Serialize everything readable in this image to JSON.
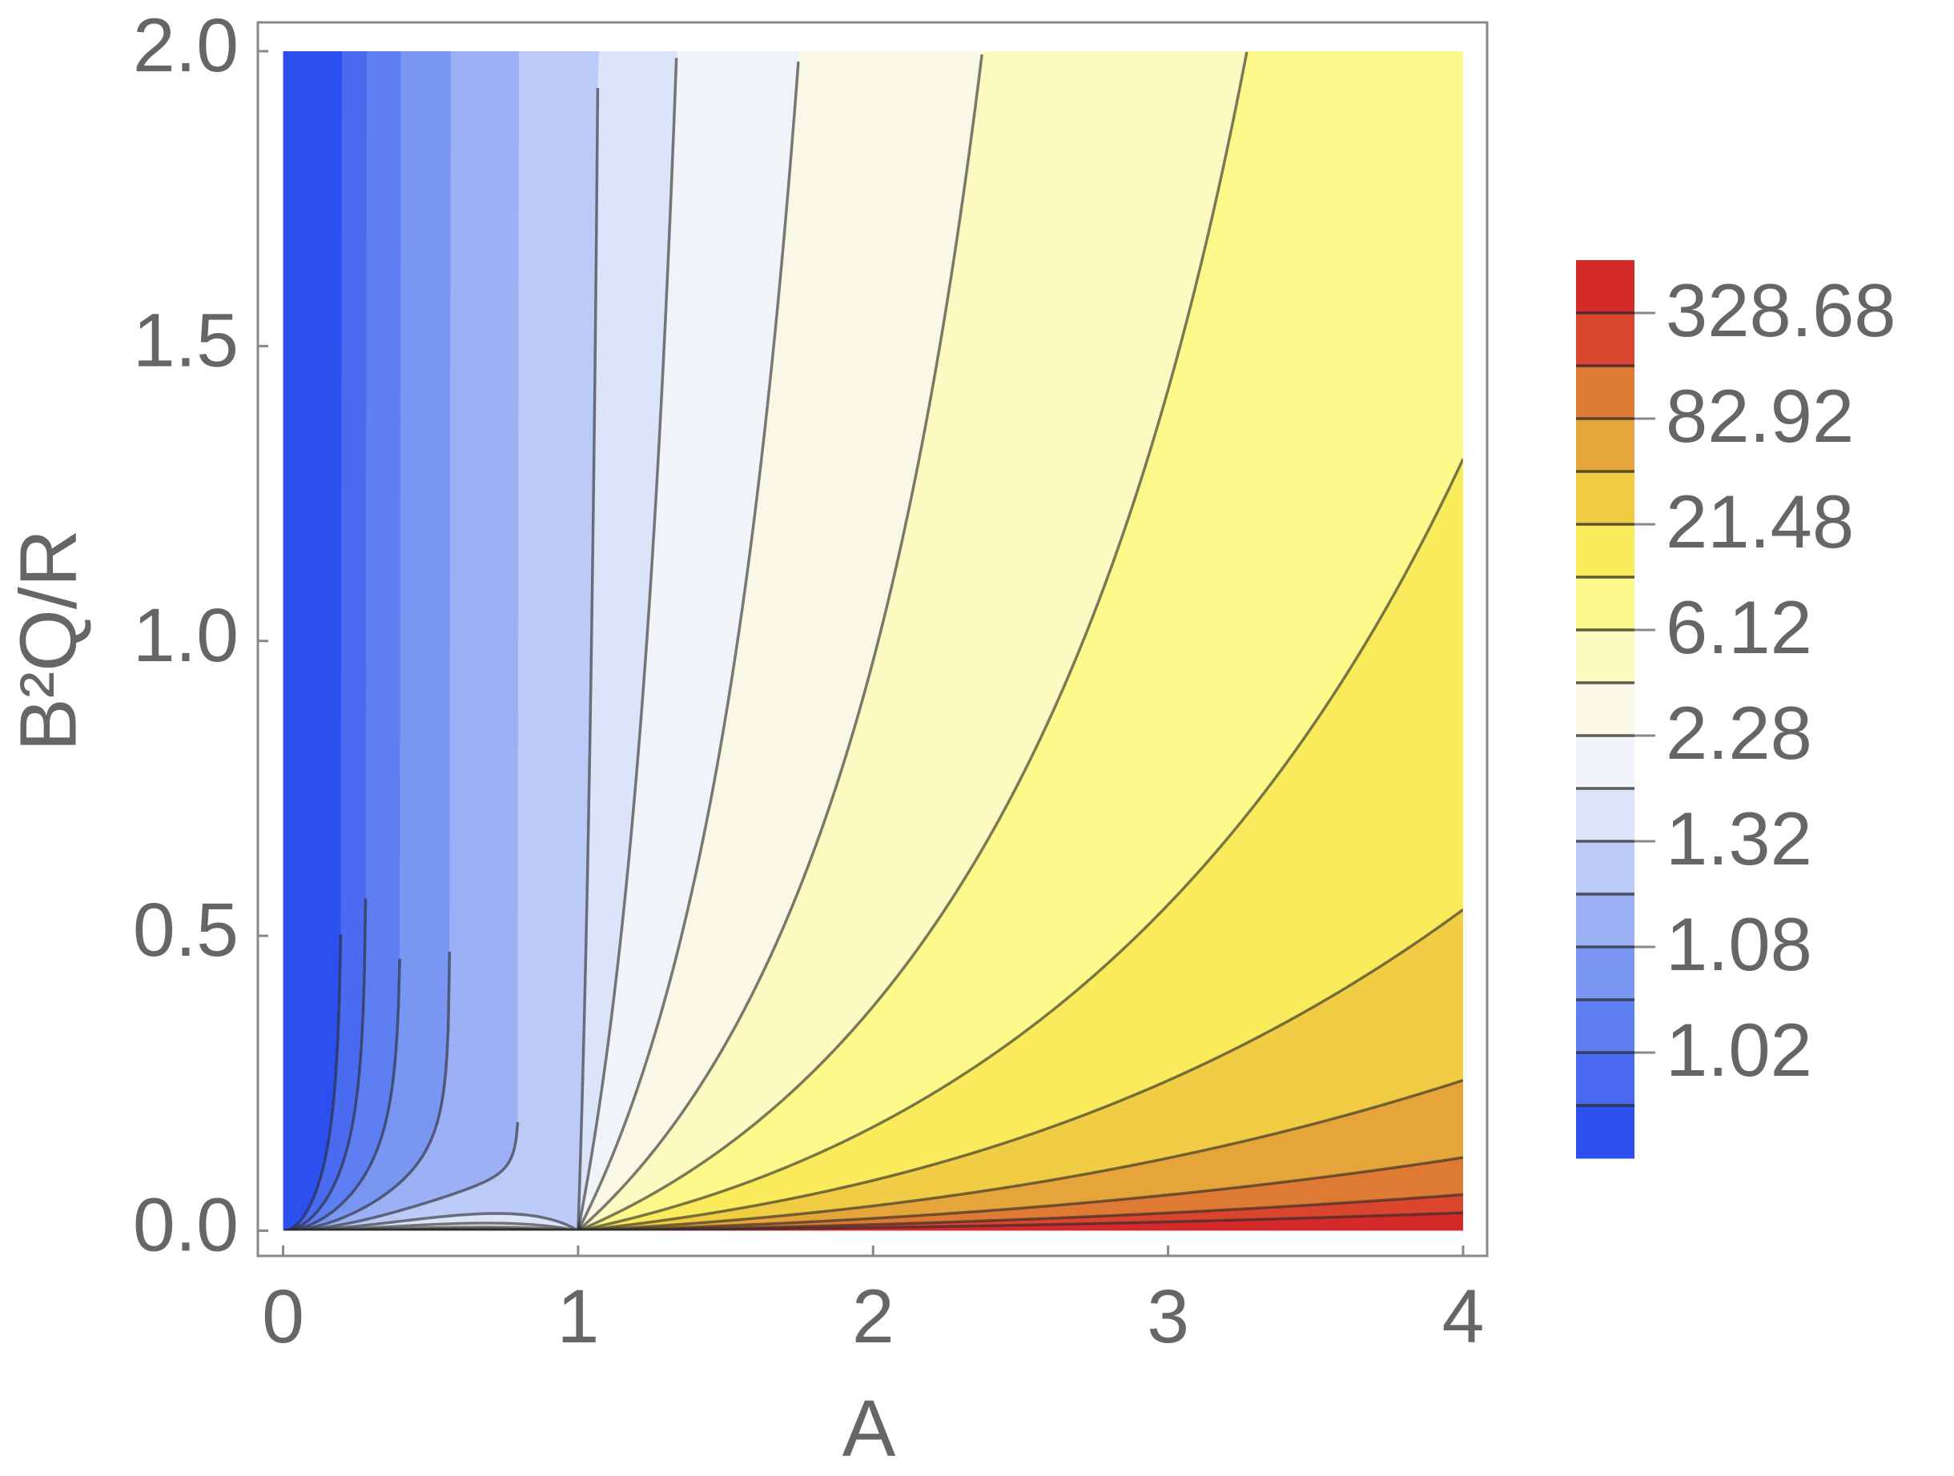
{
  "chart_data": {
    "type": "contour",
    "xlabel": "A",
    "ylabel": "B²Q/R",
    "xlim": [
      0,
      4
    ],
    "ylim": [
      0,
      2
    ],
    "xticks": [
      0,
      1,
      2,
      3,
      4
    ],
    "yticks": [
      {
        "value": 0,
        "label": "0.0"
      },
      {
        "value": 0.5,
        "label": "0.5"
      },
      {
        "value": 1,
        "label": "1.0"
      },
      {
        "value": 1.5,
        "label": "1.5"
      },
      {
        "value": 2,
        "label": "2.0"
      }
    ],
    "levels": [
      1.01,
      1.02,
      1.04,
      1.08,
      1.16,
      1.32,
      1.64,
      2.28,
      3.56,
      6.12,
      11.24,
      21.48,
      41.96,
      82.92,
      164.84,
      328.68
    ],
    "colors": [
      "#2c4fef",
      "#4a6af0",
      "#5e7ff2",
      "#7a96f3",
      "#9bb0f5",
      "#bccaf7",
      "#dce4fa",
      "#f0f3f8",
      "#f9f8e6",
      "#fcfac0",
      "#fdf98a",
      "#faeb5c",
      "#f1cd46",
      "#e6a53a",
      "#de7a33",
      "#d9452d",
      "#d42a2a"
    ],
    "colorbar_ticks": [
      1.02,
      1.08,
      1.32,
      2.28,
      6.12,
      21.48,
      82.92,
      328.68
    ]
  }
}
